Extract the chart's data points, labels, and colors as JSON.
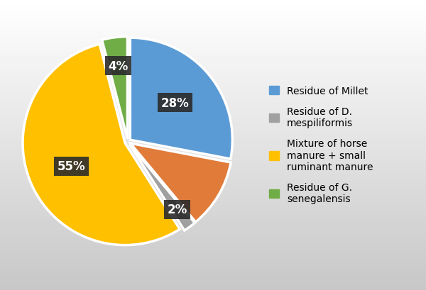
{
  "values": [
    28,
    11,
    2,
    55,
    4
  ],
  "colors": [
    "#5B9BD5",
    "#E07B39",
    "#A0A0A0",
    "#FFC000",
    "#70AD47"
  ],
  "legend_labels": [
    "Residue of Millet",
    "Residue of D.\nmespiliformis",
    "Mixture of horse\nmanure + small\nruminant manure",
    "Residue of G.\nsenegalensis"
  ],
  "legend_colors": [
    "#5B9BD5",
    "#A0A0A0",
    "#FFC000",
    "#70AD47"
  ],
  "pct_labels": [
    "28%",
    "",
    "2%",
    "55%",
    "4%"
  ],
  "label_radii": [
    0.6,
    0.0,
    0.82,
    0.6,
    0.75
  ],
  "background_color": "#D8D8D8",
  "explode": [
    0.03,
    0.03,
    0.03,
    0.03,
    0.03
  ],
  "startangle": 90,
  "label_fontsize": 12,
  "legend_fontsize": 10
}
